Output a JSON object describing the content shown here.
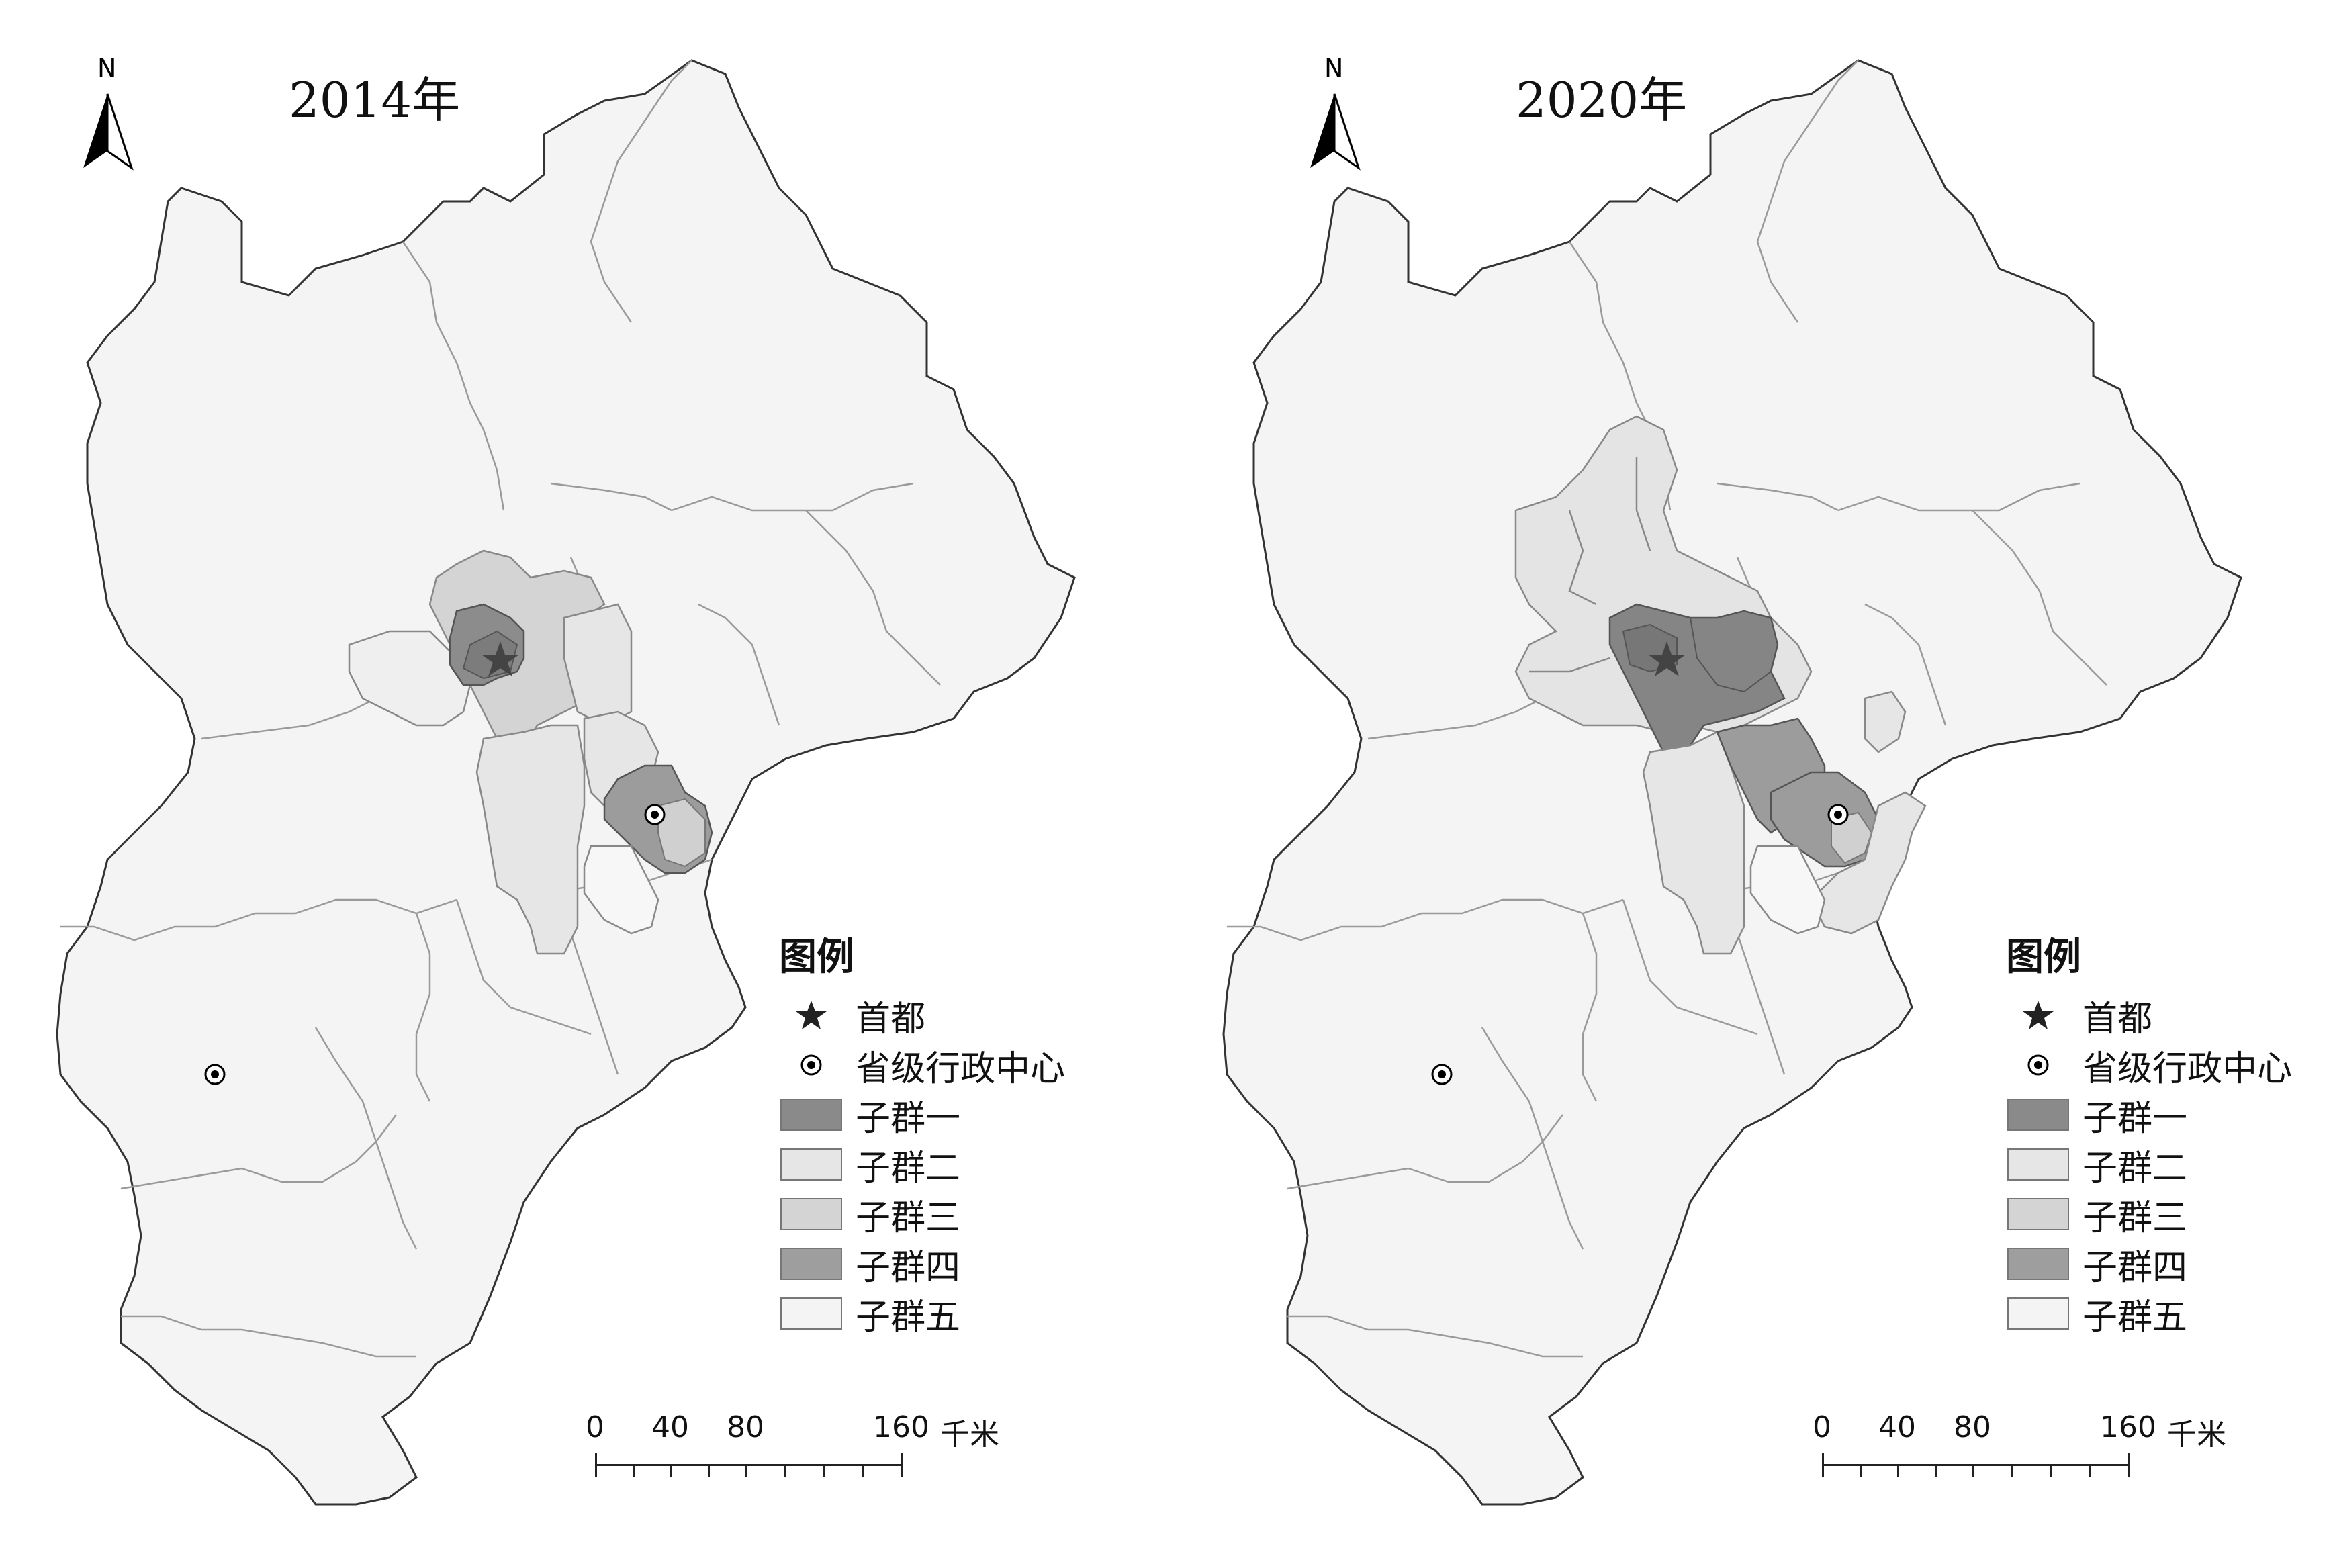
{
  "panels": [
    {
      "year_label": "2014年",
      "north_label": "N",
      "highlight": {
        "capital_core": "#8c8c8c",
        "inner_ring": "#d4d4d4",
        "corridor": "#e6e6e6",
        "tianjin_core": "#9c9c9c",
        "tianjin_inner": "#d0d0d0"
      }
    },
    {
      "year_label": "2020年",
      "north_label": "N",
      "highlight": {
        "capital_core": "#858585",
        "inner_ring": "#e4e4e4",
        "corridor": "#e6e6e6",
        "tianjin_core": "#9c9c9c",
        "tianjin_inner": "#d0d0d0"
      }
    }
  ],
  "legend": {
    "title": "图例",
    "capital_label": "首都",
    "provincial_label": "省级行政中心",
    "classes": [
      {
        "label": "子群一",
        "color": "#8a8a8a"
      },
      {
        "label": "子群二",
        "color": "#e6e6e6"
      },
      {
        "label": "子群三",
        "color": "#d4d4d4"
      },
      {
        "label": "子群四",
        "color": "#9e9e9e"
      },
      {
        "label": "子群五",
        "color": "#f4f4f4"
      }
    ]
  },
  "scale_bar": {
    "ticks": [
      "0",
      "40",
      "80",
      "160"
    ],
    "unit": "千米"
  },
  "colors": {
    "base_fill": "#f4f4f4",
    "boundary": "#333333",
    "inner_boundary": "#9a9a9a"
  }
}
